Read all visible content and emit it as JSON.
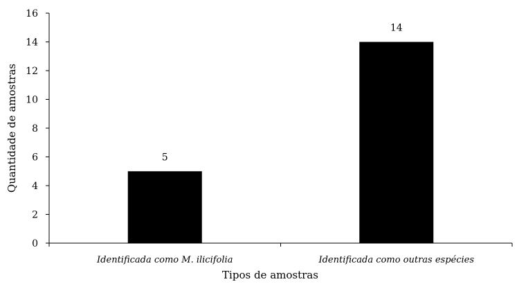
{
  "chart_data": {
    "type": "bar",
    "categories": [
      "Identificada como M. ilicifolia",
      "Identificada como outras espécies"
    ],
    "values": [
      5,
      14
    ],
    "data_labels": [
      "5",
      "14"
    ],
    "xlabel": "Tipos de amostras",
    "ylabel": "Quantidade de amostras",
    "ylim": [
      0,
      16
    ],
    "yticks": [
      0,
      2,
      4,
      6,
      8,
      10,
      12,
      14,
      16
    ],
    "grid": false,
    "legend": "none",
    "bar_color": "#000000"
  }
}
